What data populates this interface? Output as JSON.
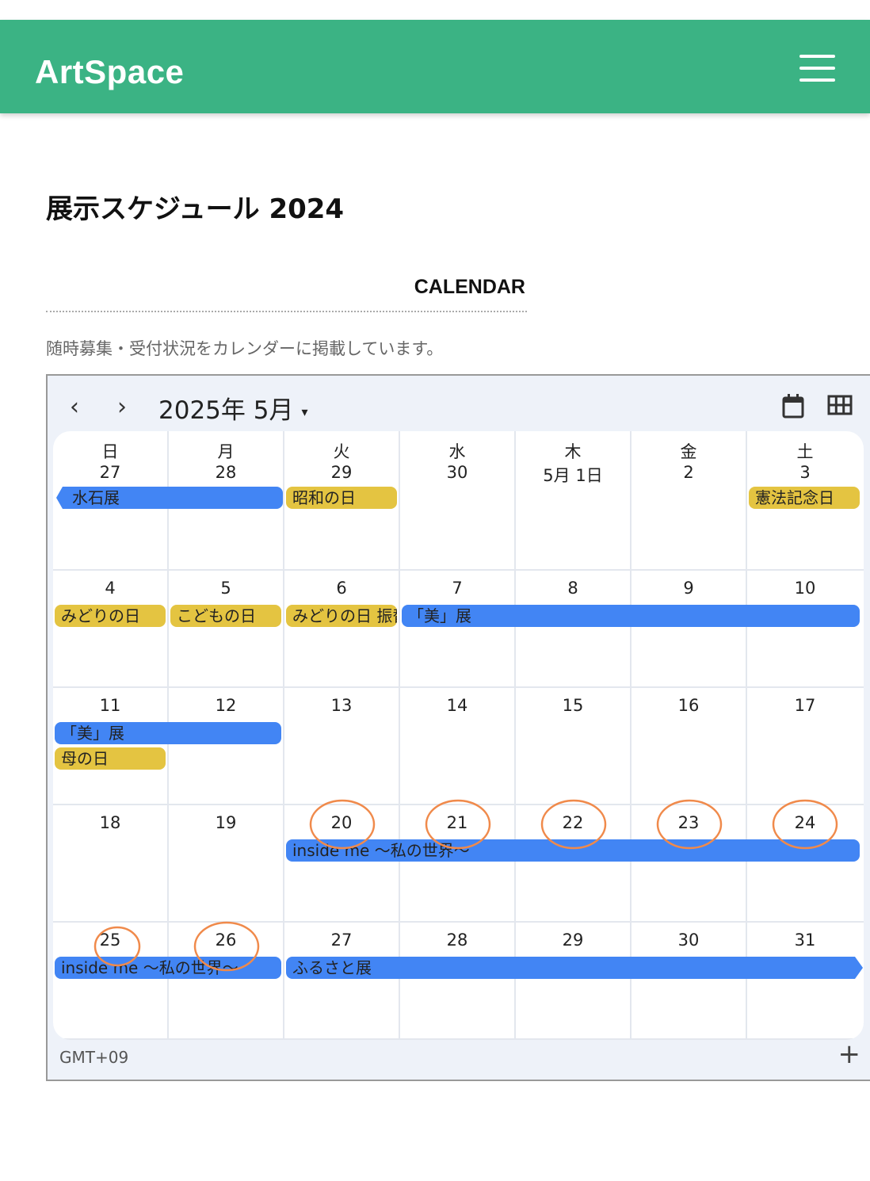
{
  "header": {
    "logo": "ArtSpace",
    "menu_icon": "hamburger-icon",
    "color": "#3bb384"
  },
  "page": {
    "title": "展示スケジュール 2024",
    "section": "CALENDAR",
    "description": "随時募集・受付状況をカレンダーに掲載しています。"
  },
  "calendar": {
    "prev": "‹",
    "next": "›",
    "month_label": "2025年 5月",
    "dropdown": "▾",
    "weekdays": [
      "日",
      "月",
      "火",
      "水",
      "木",
      "金",
      "土"
    ],
    "weeks": [
      [
        "27",
        "28",
        "29",
        "30",
        "5月 1日",
        "2",
        "3"
      ],
      [
        "4",
        "5",
        "6",
        "7",
        "8",
        "9",
        "10"
      ],
      [
        "11",
        "12",
        "13",
        "14",
        "15",
        "16",
        "17"
      ],
      [
        "18",
        "19",
        "20",
        "21",
        "22",
        "23",
        "24"
      ],
      [
        "25",
        "26",
        "27",
        "28",
        "29",
        "30",
        "31"
      ]
    ],
    "events": [
      {
        "week": 0,
        "day": 0,
        "days": 2,
        "lane": 0,
        "title": "水石展",
        "type": "exhibit",
        "cont_left": true
      },
      {
        "week": 0,
        "day": 2,
        "days": 1,
        "lane": 0,
        "title": "昭和の日",
        "type": "holiday"
      },
      {
        "week": 0,
        "day": 6,
        "days": 1,
        "lane": 0,
        "title": "憲法記念日",
        "type": "holiday"
      },
      {
        "week": 1,
        "day": 0,
        "days": 1,
        "lane": 0,
        "title": "みどりの日",
        "type": "holiday"
      },
      {
        "week": 1,
        "day": 1,
        "days": 1,
        "lane": 0,
        "title": "こどもの日",
        "type": "holiday"
      },
      {
        "week": 1,
        "day": 2,
        "days": 1,
        "lane": 0,
        "title": "みどりの日 振替休日",
        "type": "holiday"
      },
      {
        "week": 1,
        "day": 3,
        "days": 4,
        "lane": 0,
        "title": "「美」展",
        "type": "exhibit"
      },
      {
        "week": 2,
        "day": 0,
        "days": 2,
        "lane": 0,
        "title": "「美」展",
        "type": "exhibit"
      },
      {
        "week": 2,
        "day": 0,
        "days": 1,
        "lane": 1,
        "title": "母の日",
        "type": "holiday"
      },
      {
        "week": 3,
        "day": 2,
        "days": 5,
        "lane": 0,
        "title": "inside me 〜私の世界〜",
        "type": "exhibit"
      },
      {
        "week": 4,
        "day": 0,
        "days": 2,
        "lane": 0,
        "title": "inside me 〜私の世界〜",
        "type": "exhibit"
      },
      {
        "week": 4,
        "day": 2,
        "days": 5,
        "lane": 0,
        "title": "ふるさと展",
        "type": "exhibit",
        "cont_right": true
      }
    ],
    "circled_dates": [
      "20",
      "21",
      "22",
      "23",
      "24",
      "25",
      "26"
    ],
    "timezone": "GMT+09",
    "add": "+",
    "colors": {
      "exhibit": "#4285f4",
      "holiday": "#e4c441",
      "annotation": "#f08a4b"
    }
  }
}
